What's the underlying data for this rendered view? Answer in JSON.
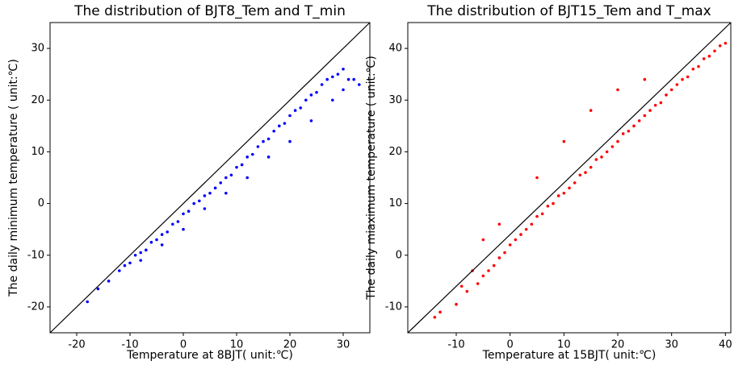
{
  "chart_data": [
    {
      "type": "scatter",
      "title": "The distribution of BJT8_Tem and T_min",
      "x_label": "Temperature at 8BJT( unit:℃)",
      "y_label": "The daily minimum temperature ( unit:℃)",
      "color": "#0000ff",
      "x": [
        -18,
        -16,
        -14,
        -12,
        -11,
        -10,
        -9,
        -8,
        -7,
        -6,
        -5,
        -4,
        -3,
        -2,
        -1,
        0,
        1,
        2,
        3,
        4,
        5,
        6,
        7,
        8,
        9,
        10,
        11,
        12,
        13,
        14,
        15,
        16,
        17,
        18,
        19,
        20,
        21,
        22,
        23,
        24,
        25,
        26,
        27,
        28,
        29,
        30,
        31,
        32,
        -8,
        -4,
        0,
        4,
        8,
        12,
        16,
        20,
        24,
        28,
        30,
        33
      ],
      "y": [
        -19,
        -16.5,
        -15,
        -13,
        -12,
        -11.5,
        -10,
        -9.5,
        -9,
        -7.5,
        -7,
        -6,
        -5.5,
        -4,
        -3.5,
        -2,
        -1.5,
        0,
        0.5,
        1.5,
        2,
        3,
        4,
        5,
        5.5,
        7,
        7.5,
        9,
        9.5,
        11,
        12,
        12.5,
        14,
        15,
        15.5,
        17,
        18,
        18.5,
        20,
        21,
        21.5,
        23,
        24,
        24.5,
        25,
        26,
        24,
        24,
        -11,
        -8,
        -5,
        -1,
        2,
        5,
        9,
        12,
        16,
        20,
        22,
        23
      ],
      "xlim": [
        -25,
        35
      ],
      "ylim": [
        -25,
        35
      ],
      "xticks": [
        -20,
        -10,
        0,
        10,
        20,
        30
      ],
      "yticks": [
        -20,
        -10,
        0,
        10,
        20,
        30
      ]
    },
    {
      "type": "scatter",
      "title": "The distribution of BJT15_Tem and T_max",
      "x_label": "Temperature at 15BJT( unit:℃)",
      "y_label": "The daily miaximum temperature ( unit:℃)",
      "color": "#ff0000",
      "x": [
        -14,
        -13,
        -10,
        -9,
        -8,
        -7,
        -6,
        -5,
        -4,
        -3,
        -2,
        -1,
        0,
        1,
        2,
        3,
        4,
        5,
        6,
        7,
        8,
        9,
        10,
        11,
        12,
        13,
        14,
        15,
        16,
        17,
        18,
        19,
        20,
        21,
        22,
        23,
        24,
        25,
        26,
        27,
        28,
        29,
        30,
        31,
        32,
        33,
        34,
        35,
        36,
        37,
        38,
        39,
        40,
        -5,
        -2,
        5,
        10,
        15,
        20,
        25
      ],
      "y": [
        -12,
        -11,
        -9.5,
        -6,
        -7,
        -3,
        -5.5,
        -4,
        -3,
        -2,
        -0.5,
        0.5,
        2,
        3,
        4,
        5,
        6,
        7.5,
        8,
        9.5,
        10,
        11.5,
        12,
        13,
        14,
        15.5,
        16,
        17,
        18.5,
        19,
        20,
        21,
        22,
        23.5,
        24,
        25,
        26,
        27,
        28,
        29,
        29.5,
        31,
        32,
        33,
        34,
        34.5,
        36,
        36.5,
        38,
        38.5,
        39.5,
        40.5,
        41,
        3,
        6,
        15,
        22,
        28,
        32,
        34
      ],
      "xlim": [
        -19,
        41
      ],
      "ylim": [
        -15,
        45
      ],
      "xticks": [
        -10,
        0,
        10,
        20,
        30,
        40
      ],
      "yticks": [
        -10,
        0,
        10,
        20,
        30,
        40
      ]
    }
  ]
}
